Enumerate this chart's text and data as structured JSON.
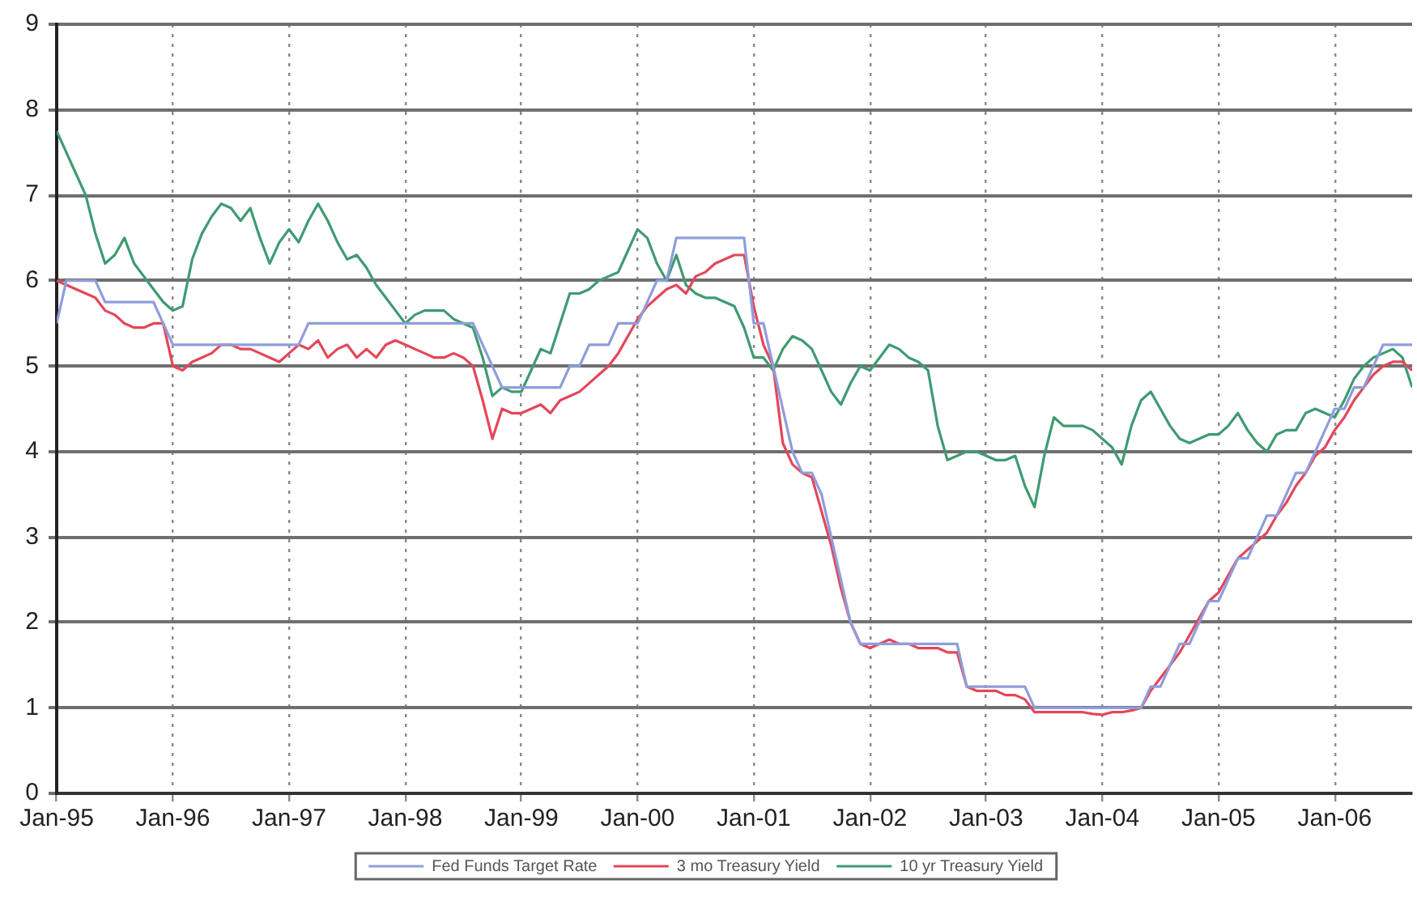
{
  "chart_data": {
    "type": "line",
    "x": [
      "1995-01",
      "1995-02",
      "1995-03",
      "1995-04",
      "1995-05",
      "1995-06",
      "1995-07",
      "1995-08",
      "1995-09",
      "1995-10",
      "1995-11",
      "1995-12",
      "1996-01",
      "1996-02",
      "1996-03",
      "1996-04",
      "1996-05",
      "1996-06",
      "1996-07",
      "1996-08",
      "1996-09",
      "1996-10",
      "1996-11",
      "1996-12",
      "1997-01",
      "1997-02",
      "1997-03",
      "1997-04",
      "1997-05",
      "1997-06",
      "1997-07",
      "1997-08",
      "1997-09",
      "1997-10",
      "1997-11",
      "1997-12",
      "1998-01",
      "1998-02",
      "1998-03",
      "1998-04",
      "1998-05",
      "1998-06",
      "1998-07",
      "1998-08",
      "1998-09",
      "1998-10",
      "1998-11",
      "1998-12",
      "1999-01",
      "1999-02",
      "1999-03",
      "1999-04",
      "1999-05",
      "1999-06",
      "1999-07",
      "1999-08",
      "1999-09",
      "1999-10",
      "1999-11",
      "1999-12",
      "2000-01",
      "2000-02",
      "2000-03",
      "2000-04",
      "2000-05",
      "2000-06",
      "2000-07",
      "2000-08",
      "2000-09",
      "2000-10",
      "2000-11",
      "2000-12",
      "2001-01",
      "2001-02",
      "2001-03",
      "2001-04",
      "2001-05",
      "2001-06",
      "2001-07",
      "2001-08",
      "2001-09",
      "2001-10",
      "2001-11",
      "2001-12",
      "2002-01",
      "2002-02",
      "2002-03",
      "2002-04",
      "2002-05",
      "2002-06",
      "2002-07",
      "2002-08",
      "2002-09",
      "2002-10",
      "2002-11",
      "2002-12",
      "2003-01",
      "2003-02",
      "2003-03",
      "2003-04",
      "2003-05",
      "2003-06",
      "2003-07",
      "2003-08",
      "2003-09",
      "2003-10",
      "2003-11",
      "2003-12",
      "2004-01",
      "2004-02",
      "2004-03",
      "2004-04",
      "2004-05",
      "2004-06",
      "2004-07",
      "2004-08",
      "2004-09",
      "2004-10",
      "2004-11",
      "2004-12",
      "2005-01",
      "2005-02",
      "2005-03",
      "2005-04",
      "2005-05",
      "2005-06",
      "2005-07",
      "2005-08",
      "2005-09",
      "2005-10",
      "2005-11",
      "2005-12",
      "2006-01",
      "2006-02",
      "2006-03",
      "2006-04",
      "2006-05",
      "2006-06",
      "2006-07",
      "2006-08",
      "2006-09"
    ],
    "series": [
      {
        "name": "Fed Funds Target Rate",
        "color": "#8f9ddb",
        "values": [
          5.5,
          6,
          6,
          6,
          6,
          5.75,
          5.75,
          5.75,
          5.75,
          5.75,
          5.75,
          5.5,
          5.25,
          5.25,
          5.25,
          5.25,
          5.25,
          5.25,
          5.25,
          5.25,
          5.25,
          5.25,
          5.25,
          5.25,
          5.25,
          5.25,
          5.5,
          5.5,
          5.5,
          5.5,
          5.5,
          5.5,
          5.5,
          5.5,
          5.5,
          5.5,
          5.5,
          5.5,
          5.5,
          5.5,
          5.5,
          5.5,
          5.5,
          5.5,
          5.25,
          5,
          4.75,
          4.75,
          4.75,
          4.75,
          4.75,
          4.75,
          4.75,
          5,
          5,
          5.25,
          5.25,
          5.25,
          5.5,
          5.5,
          5.5,
          5.75,
          6,
          6,
          6.5,
          6.5,
          6.5,
          6.5,
          6.5,
          6.5,
          6.5,
          6.5,
          5.5,
          5.5,
          5,
          4.5,
          4,
          3.75,
          3.75,
          3.5,
          3,
          2.5,
          2,
          1.75,
          1.75,
          1.75,
          1.75,
          1.75,
          1.75,
          1.75,
          1.75,
          1.75,
          1.75,
          1.75,
          1.25,
          1.25,
          1.25,
          1.25,
          1.25,
          1.25,
          1.25,
          1,
          1,
          1,
          1,
          1,
          1,
          1,
          1,
          1,
          1,
          1,
          1,
          1.25,
          1.25,
          1.5,
          1.75,
          1.75,
          2,
          2.25,
          2.25,
          2.5,
          2.75,
          2.75,
          3,
          3.25,
          3.25,
          3.5,
          3.75,
          3.75,
          4,
          4.25,
          4.5,
          4.5,
          4.75,
          4.75,
          5,
          5.25,
          5.25,
          5.25,
          5.25
        ]
      },
      {
        "name": "3 mo Treasury Yield",
        "color": "#e3475a",
        "values": [
          6,
          5.95,
          5.9,
          5.85,
          5.8,
          5.65,
          5.6,
          5.5,
          5.45,
          5.45,
          5.5,
          5.5,
          5,
          4.95,
          5.05,
          5.1,
          5.15,
          5.25,
          5.25,
          5.2,
          5.2,
          5.15,
          5.1,
          5.05,
          5.15,
          5.25,
          5.2,
          5.3,
          5.1,
          5.2,
          5.25,
          5.1,
          5.2,
          5.1,
          5.25,
          5.3,
          5.25,
          5.2,
          5.15,
          5.1,
          5.1,
          5.15,
          5.1,
          5,
          4.6,
          4.15,
          4.5,
          4.45,
          4.45,
          4.5,
          4.55,
          4.45,
          4.6,
          4.65,
          4.7,
          4.8,
          4.9,
          5,
          5.15,
          5.35,
          5.55,
          5.7,
          5.8,
          5.9,
          5.95,
          5.85,
          6.05,
          6.1,
          6.2,
          6.25,
          6.3,
          6.3,
          5.7,
          5.25,
          5,
          4.1,
          3.85,
          3.75,
          3.7,
          3.3,
          2.9,
          2.4,
          2,
          1.75,
          1.7,
          1.75,
          1.8,
          1.75,
          1.75,
          1.7,
          1.7,
          1.7,
          1.65,
          1.65,
          1.25,
          1.2,
          1.2,
          1.2,
          1.15,
          1.15,
          1.1,
          0.95,
          0.95,
          0.95,
          0.95,
          0.95,
          0.95,
          0.93,
          0.92,
          0.95,
          0.95,
          0.97,
          1,
          1.2,
          1.35,
          1.5,
          1.65,
          1.85,
          2.05,
          2.25,
          2.35,
          2.55,
          2.75,
          2.85,
          2.95,
          3.05,
          3.25,
          3.4,
          3.6,
          3.75,
          3.95,
          4.05,
          4.25,
          4.4,
          4.6,
          4.75,
          4.9,
          5,
          5.05,
          5.05,
          4.95
        ]
      },
      {
        "name": "10 yr Treasury Yield",
        "color": "#3f9a72",
        "values": [
          7.75,
          7.5,
          7.25,
          7,
          6.55,
          6.2,
          6.3,
          6.5,
          6.2,
          6.05,
          5.9,
          5.75,
          5.65,
          5.7,
          6.25,
          6.55,
          6.75,
          6.9,
          6.85,
          6.7,
          6.85,
          6.5,
          6.2,
          6.45,
          6.6,
          6.45,
          6.7,
          6.9,
          6.7,
          6.45,
          6.25,
          6.3,
          6.15,
          5.95,
          5.8,
          5.65,
          5.5,
          5.6,
          5.65,
          5.65,
          5.65,
          5.55,
          5.5,
          5.45,
          5.1,
          4.65,
          4.75,
          4.7,
          4.7,
          4.95,
          5.2,
          5.15,
          5.5,
          5.85,
          5.85,
          5.9,
          6,
          6.05,
          6.1,
          6.35,
          6.6,
          6.5,
          6.2,
          6,
          6.3,
          5.95,
          5.85,
          5.8,
          5.8,
          5.75,
          5.7,
          5.45,
          5.1,
          5.1,
          4.95,
          5.2,
          5.35,
          5.3,
          5.2,
          4.95,
          4.7,
          4.55,
          4.8,
          5,
          4.95,
          5.1,
          5.25,
          5.2,
          5.1,
          5.05,
          4.95,
          4.3,
          3.9,
          3.95,
          4,
          4,
          3.95,
          3.9,
          3.9,
          3.95,
          3.6,
          3.35,
          3.95,
          4.4,
          4.3,
          4.3,
          4.3,
          4.25,
          4.15,
          4.05,
          3.85,
          4.3,
          4.6,
          4.7,
          4.5,
          4.3,
          4.15,
          4.1,
          4.15,
          4.2,
          4.2,
          4.3,
          4.45,
          4.25,
          4.1,
          4,
          4.2,
          4.25,
          4.25,
          4.45,
          4.5,
          4.45,
          4.4,
          4.6,
          4.85,
          5,
          5.1,
          5.15,
          5.2,
          5.1,
          4.75
        ]
      }
    ],
    "xlim": [
      "1995-01",
      "2006-09"
    ],
    "xticks": [
      {
        "value": "1995-01",
        "label": "Jan-95"
      },
      {
        "value": "1996-01",
        "label": "Jan-96"
      },
      {
        "value": "1997-01",
        "label": "Jan-97"
      },
      {
        "value": "1998-01",
        "label": "Jan-98"
      },
      {
        "value": "1999-01",
        "label": "Jan-99"
      },
      {
        "value": "2000-01",
        "label": "Jan-00"
      },
      {
        "value": "2001-01",
        "label": "Jan-01"
      },
      {
        "value": "2002-01",
        "label": "Jan-02"
      },
      {
        "value": "2003-01",
        "label": "Jan-03"
      },
      {
        "value": "2004-01",
        "label": "Jan-04"
      },
      {
        "value": "2005-01",
        "label": "Jan-05"
      },
      {
        "value": "2006-01",
        "label": "Jan-06"
      }
    ],
    "ylim": [
      0,
      9
    ],
    "yticks": [
      0,
      1,
      2,
      3,
      4,
      5,
      6,
      7,
      8,
      9
    ],
    "grid": true,
    "legend": "bottom",
    "marker": "none"
  }
}
